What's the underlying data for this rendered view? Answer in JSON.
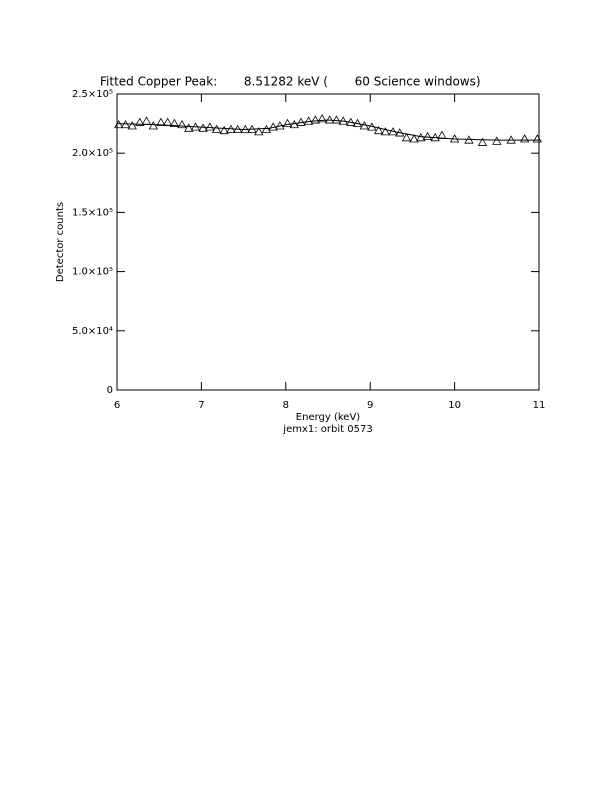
{
  "chart_data": {
    "type": "scatter",
    "title": "Fitted Copper Peak:       8.51282 keV (       60 Science windows)",
    "x_label": "Energy (keV)",
    "subtitle": "jemx1: orbit 0573",
    "y_label": "Detector counts",
    "xlim": [
      6,
      11
    ],
    "xticks": [
      6,
      7,
      8,
      9,
      10,
      11
    ],
    "ylim": [
      0,
      250000
    ],
    "yticks": [
      {
        "value": 0,
        "label": "0"
      },
      {
        "value": 50000,
        "label": "5.0×10⁴"
      },
      {
        "value": 100000,
        "label": "1.0×10⁵"
      },
      {
        "value": 150000,
        "label": "1.5×10⁵"
      },
      {
        "value": 200000,
        "label": "2.0×10⁵"
      },
      {
        "value": 250000,
        "label": "2.5×10⁵"
      }
    ],
    "series": [
      {
        "style": "markers",
        "marker": "triangle",
        "color": "#000000",
        "x": [
          6.02,
          6.1,
          6.18,
          6.27,
          6.35,
          6.43,
          6.52,
          6.6,
          6.68,
          6.77,
          6.85,
          6.93,
          7.02,
          7.1,
          7.18,
          7.27,
          7.35,
          7.43,
          7.52,
          7.6,
          7.68,
          7.77,
          7.85,
          7.93,
          8.02,
          8.1,
          8.18,
          8.27,
          8.35,
          8.43,
          8.52,
          8.6,
          8.68,
          8.77,
          8.85,
          8.93,
          9.02,
          9.1,
          9.18,
          9.27,
          9.35,
          9.43,
          9.52,
          9.6,
          9.68,
          9.77,
          9.85,
          10.0,
          10.17,
          10.33,
          10.5,
          10.67,
          10.83,
          10.98
        ],
        "values": [
          224000,
          224000,
          223000,
          226000,
          227000,
          223000,
          226000,
          226000,
          225000,
          224000,
          221000,
          222000,
          221000,
          222000,
          220000,
          219000,
          220000,
          220000,
          220000,
          220000,
          218000,
          220000,
          222000,
          223000,
          225000,
          224000,
          226000,
          227000,
          228000,
          229000,
          228000,
          228000,
          227000,
          226000,
          225000,
          223000,
          222000,
          219000,
          218000,
          218000,
          217000,
          213000,
          212000,
          213000,
          214000,
          213000,
          215000,
          212000,
          211000,
          209000,
          210000,
          211000,
          212000,
          212000
        ]
      },
      {
        "style": "line",
        "color": "#000000",
        "x": [
          6.0,
          6.5,
          7.0,
          7.5,
          7.8,
          8.0,
          8.3,
          8.5,
          8.7,
          9.0,
          9.3,
          9.6,
          10.0,
          10.5,
          11.0
        ],
        "values": [
          225000,
          224000,
          222000,
          220000,
          221000,
          224000,
          227000,
          228000,
          227000,
          223000,
          218000,
          214000,
          212000,
          211000,
          211000
        ]
      }
    ]
  }
}
